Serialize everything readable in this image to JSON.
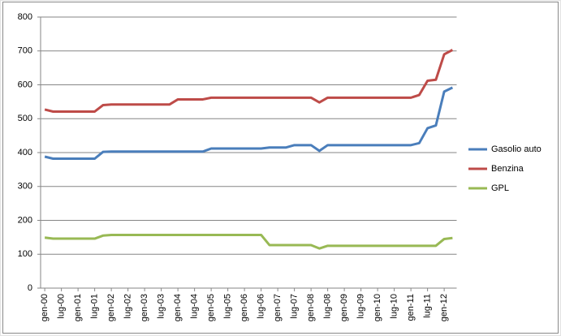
{
  "chart_data": {
    "type": "line",
    "categories": [
      "gen-00",
      null,
      "lug-00",
      null,
      "gen-01",
      null,
      "lug-01",
      null,
      "gen-02",
      null,
      "lug-02",
      null,
      "gen-03",
      null,
      "lug-03",
      null,
      "gen-04",
      null,
      "lug-04",
      null,
      "gen-05",
      null,
      "lug-05",
      null,
      "gen-06",
      null,
      "lug-06",
      null,
      "gen-07",
      null,
      "lug-07",
      null,
      "gen-08",
      null,
      "lug-08",
      null,
      "gen-09",
      null,
      "lug-09",
      null,
      "gen-10",
      null,
      "lug-10",
      null,
      "gen-11",
      null,
      "lug-11",
      null,
      "gen-12",
      null
    ],
    "series": [
      {
        "name": "Gasolio auto",
        "color": "#4a7ebb",
        "values": [
          388,
          382,
          382,
          382,
          382,
          382,
          382,
          402,
          403,
          403,
          403,
          403,
          403,
          403,
          403,
          403,
          403,
          403,
          403,
          403,
          412,
          412,
          412,
          412,
          412,
          412,
          412,
          415,
          415,
          415,
          422,
          422,
          422,
          405,
          422,
          422,
          422,
          422,
          422,
          422,
          422,
          422,
          422,
          422,
          422,
          428,
          472,
          480,
          580,
          592
        ]
      },
      {
        "name": "Benzina",
        "color": "#be4b48",
        "values": [
          527,
          521,
          521,
          521,
          521,
          521,
          521,
          540,
          542,
          542,
          542,
          542,
          542,
          542,
          542,
          542,
          557,
          557,
          557,
          557,
          562,
          562,
          562,
          562,
          562,
          562,
          562,
          562,
          562,
          562,
          562,
          562,
          562,
          548,
          562,
          562,
          562,
          562,
          562,
          562,
          562,
          562,
          562,
          562,
          562,
          570,
          612,
          615,
          690,
          703
        ]
      },
      {
        "name": "GPL",
        "color": "#98b954",
        "values": [
          149,
          146,
          146,
          146,
          146,
          146,
          146,
          155,
          157,
          157,
          157,
          157,
          157,
          157,
          157,
          157,
          157,
          157,
          157,
          157,
          157,
          157,
          157,
          157,
          157,
          157,
          157,
          127,
          127,
          127,
          127,
          127,
          127,
          117,
          125,
          125,
          125,
          125,
          125,
          125,
          125,
          125,
          125,
          125,
          125,
          125,
          125,
          125,
          145,
          148
        ]
      }
    ],
    "ylim": [
      0,
      800
    ],
    "yticks": [
      0,
      100,
      200,
      300,
      400,
      500,
      600,
      700,
      800
    ],
    "grid": true,
    "legend": "right"
  }
}
